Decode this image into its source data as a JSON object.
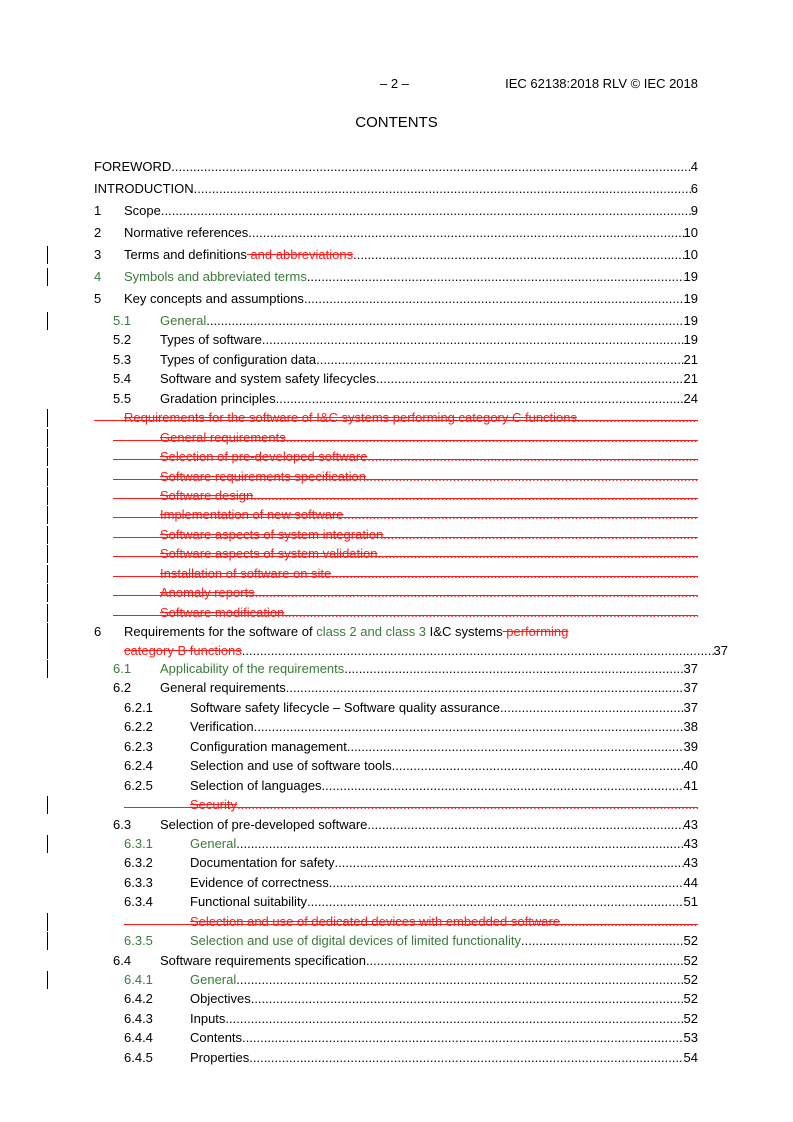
{
  "header": {
    "page": "– 2 –",
    "document": "IEC 62138:2018 RLV © IEC 2018"
  },
  "title": "CONTENTS",
  "colors": {
    "inserted": "#3a7a3a",
    "deleted": "#ff1a1a"
  },
  "toc": [
    {
      "level": 0,
      "num": "",
      "parts": [
        {
          "t": "FOREWORD",
          "s": "n"
        }
      ],
      "page": "4",
      "top": true
    },
    {
      "level": 0,
      "num": "",
      "parts": [
        {
          "t": "INTRODUCTION",
          "s": "n"
        }
      ],
      "page": "6",
      "top": true
    },
    {
      "level": 1,
      "num": "1",
      "parts": [
        {
          "t": "Scope",
          "s": "n"
        }
      ],
      "page": "9",
      "top": true
    },
    {
      "level": 1,
      "num": "2",
      "parts": [
        {
          "t": "Normative references",
          "s": "n"
        }
      ],
      "page": "10",
      "top": true
    },
    {
      "level": 1,
      "num": "3",
      "parts": [
        {
          "t": "Terms and definitions",
          "s": "n"
        },
        {
          "t": " and abbreviations",
          "s": "d"
        }
      ],
      "page": "10",
      "top": true,
      "bar": true
    },
    {
      "level": 1,
      "num": "4",
      "parts": [
        {
          "t": "Symbols and abbreviated terms",
          "s": "i"
        }
      ],
      "page": "19",
      "top": true,
      "bar": true,
      "ins": true
    },
    {
      "level": 1,
      "num": "5",
      "parts": [
        {
          "t": "Key concepts and assumptions",
          "s": "n"
        }
      ],
      "page": "19",
      "top": true
    },
    {
      "level": 2,
      "num": "5.1",
      "parts": [
        {
          "t": "General",
          "s": "i"
        }
      ],
      "page": "19",
      "bar": true,
      "ins": true
    },
    {
      "level": 2,
      "num": "5.2",
      "parts": [
        {
          "t": "Types of software",
          "s": "n"
        }
      ],
      "page": "19"
    },
    {
      "level": 2,
      "num": "5.3",
      "parts": [
        {
          "t": "Types of configuration data",
          "s": "n"
        }
      ],
      "page": "21"
    },
    {
      "level": 2,
      "num": "5.4",
      "parts": [
        {
          "t": "Software and system safety lifecycles",
          "s": "n"
        }
      ],
      "page": "21"
    },
    {
      "level": 2,
      "num": "5.5",
      "parts": [
        {
          "t": "Gradation principles",
          "s": "n"
        }
      ],
      "page": "24"
    },
    {
      "level": 1,
      "num": "",
      "parts": [
        {
          "t": "Requirements for the software of I&C systems performing category C functions",
          "s": "n"
        }
      ],
      "page": "",
      "deleted": true,
      "bar": true
    },
    {
      "level": 2,
      "num": "",
      "parts": [
        {
          "t": "General requirements",
          "s": "n"
        }
      ],
      "page": "",
      "deleted": true,
      "bar": true
    },
    {
      "level": 2,
      "num": "",
      "parts": [
        {
          "t": "Selection of pre-developed software",
          "s": "n"
        }
      ],
      "page": "",
      "deleted": true,
      "bar": true
    },
    {
      "level": 2,
      "num": "",
      "parts": [
        {
          "t": "Software requirements specification",
          "s": "n"
        }
      ],
      "page": "",
      "deleted": true,
      "bar": true
    },
    {
      "level": 2,
      "num": "",
      "parts": [
        {
          "t": "Software design",
          "s": "n"
        }
      ],
      "page": "",
      "deleted": true,
      "bar": true
    },
    {
      "level": 2,
      "num": "",
      "parts": [
        {
          "t": "Implementation of new software",
          "s": "n"
        }
      ],
      "page": "",
      "deleted": true,
      "bar": true
    },
    {
      "level": 2,
      "num": "",
      "parts": [
        {
          "t": "Software aspects of system integration",
          "s": "n"
        }
      ],
      "page": "",
      "deleted": true,
      "bar": true
    },
    {
      "level": 2,
      "num": "",
      "parts": [
        {
          "t": "Software aspects of system validation",
          "s": "n"
        }
      ],
      "page": "",
      "deleted": true,
      "bar": true
    },
    {
      "level": 2,
      "num": "",
      "parts": [
        {
          "t": "Installation of software on site",
          "s": "n"
        }
      ],
      "page": "",
      "deleted": true,
      "bar": true
    },
    {
      "level": 2,
      "num": "",
      "parts": [
        {
          "t": "Anomaly reports",
          "s": "n"
        }
      ],
      "page": "",
      "deleted": true,
      "bar": true
    },
    {
      "level": 2,
      "num": "",
      "parts": [
        {
          "t": "Software modification",
          "s": "n"
        }
      ],
      "page": "",
      "deleted": true,
      "bar": true
    },
    {
      "level": 1,
      "num": "6",
      "parts": [
        {
          "t": "Requirements for the software of ",
          "s": "n"
        },
        {
          "t": "class 2 and class 3",
          "s": "i"
        },
        {
          "t": " I&C systems",
          "s": "n"
        },
        {
          "t": " performing",
          "s": "d"
        }
      ],
      "line2": [
        {
          "t": "category B functions",
          "s": "d"
        }
      ],
      "page": "37",
      "wrap": true,
      "bar": true
    },
    {
      "level": 2,
      "num": "6.1",
      "parts": [
        {
          "t": "Applicability of the requirements",
          "s": "i"
        }
      ],
      "page": "37",
      "bar": true,
      "ins": true
    },
    {
      "level": 2,
      "num": "6.2",
      "parts": [
        {
          "t": "General requirements",
          "s": "n"
        }
      ],
      "page": "37"
    },
    {
      "level": 3,
      "num": "6.2.1",
      "parts": [
        {
          "t": "Software safety lifecycle – Software quality assurance",
          "s": "n"
        }
      ],
      "page": "37"
    },
    {
      "level": 3,
      "num": "6.2.2",
      "parts": [
        {
          "t": "Verification",
          "s": "n"
        }
      ],
      "page": "38"
    },
    {
      "level": 3,
      "num": "6.2.3",
      "parts": [
        {
          "t": "Configuration management",
          "s": "n"
        }
      ],
      "page": "39"
    },
    {
      "level": 3,
      "num": "6.2.4",
      "parts": [
        {
          "t": "Selection and use of software tools",
          "s": "n"
        }
      ],
      "page": "40"
    },
    {
      "level": 3,
      "num": "6.2.5",
      "parts": [
        {
          "t": "Selection of languages",
          "s": "n"
        }
      ],
      "page": "41"
    },
    {
      "level": 3,
      "num": "",
      "parts": [
        {
          "t": "Security",
          "s": "n"
        }
      ],
      "page": "",
      "deleted": true,
      "bar": true
    },
    {
      "level": 2,
      "num": "6.3",
      "parts": [
        {
          "t": "Selection of pre-developed software",
          "s": "n"
        }
      ],
      "page": "43"
    },
    {
      "level": 3,
      "num": "6.3.1",
      "parts": [
        {
          "t": "General",
          "s": "i"
        }
      ],
      "page": "43",
      "bar": true,
      "ins": true
    },
    {
      "level": 3,
      "num": "6.3.2",
      "parts": [
        {
          "t": "Documentation for safety",
          "s": "n"
        }
      ],
      "page": "43"
    },
    {
      "level": 3,
      "num": "6.3.3",
      "parts": [
        {
          "t": "Evidence of correctness",
          "s": "n"
        }
      ],
      "page": "44"
    },
    {
      "level": 3,
      "num": "6.3.4",
      "parts": [
        {
          "t": "Functional suitability",
          "s": "n"
        }
      ],
      "page": "51"
    },
    {
      "level": 3,
      "num": "",
      "parts": [
        {
          "t": "Selection and use of dedicated devices with embedded software",
          "s": "n"
        }
      ],
      "page": "",
      "deleted": true,
      "bar": true
    },
    {
      "level": 3,
      "num": "6.3.5",
      "parts": [
        {
          "t": "Selection and use of digital devices of limited functionality",
          "s": "i"
        }
      ],
      "page": "52",
      "bar": true,
      "ins": true
    },
    {
      "level": 2,
      "num": "6.4",
      "parts": [
        {
          "t": "Software requirements specification",
          "s": "n"
        }
      ],
      "page": "52"
    },
    {
      "level": 3,
      "num": "6.4.1",
      "parts": [
        {
          "t": "General",
          "s": "i"
        }
      ],
      "page": "52",
      "bar": true,
      "ins": true
    },
    {
      "level": 3,
      "num": "6.4.2",
      "parts": [
        {
          "t": "Objectives",
          "s": "n"
        }
      ],
      "page": "52"
    },
    {
      "level": 3,
      "num": "6.4.3",
      "parts": [
        {
          "t": "Inputs",
          "s": "n"
        }
      ],
      "page": "52"
    },
    {
      "level": 3,
      "num": "6.4.4",
      "parts": [
        {
          "t": "Contents",
          "s": "n"
        }
      ],
      "page": "53"
    },
    {
      "level": 3,
      "num": "6.4.5",
      "parts": [
        {
          "t": "Properties",
          "s": "n"
        }
      ],
      "page": "54"
    }
  ]
}
